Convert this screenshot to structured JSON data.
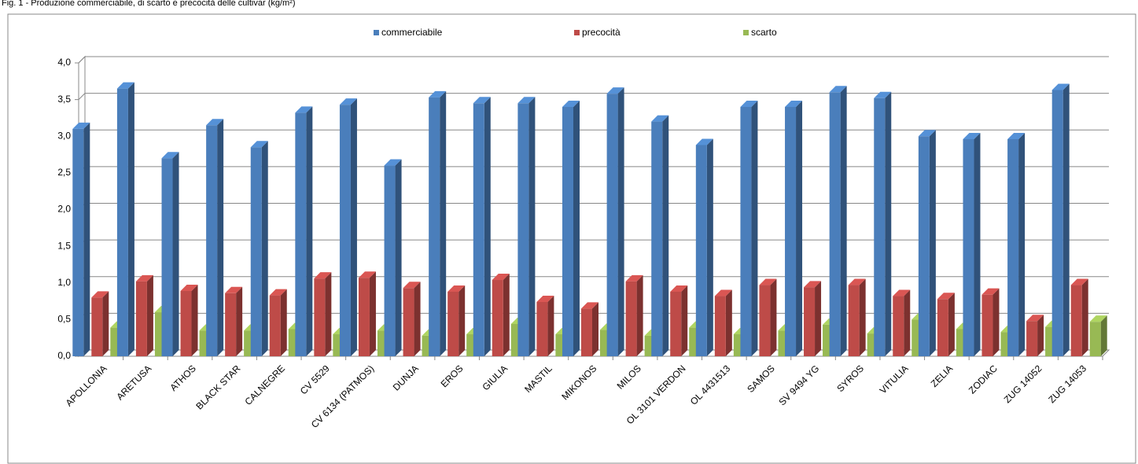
{
  "chart_data": {
    "type": "bar3d",
    "title": "Fig. 1 - Produzione commerciabile, di scarto e precocità delle cultivar (kg/m²)",
    "categories": [
      "APOLLONIA",
      "ARETUSA",
      "ATHOS",
      "BLACK STAR",
      "CALNEGRE",
      "CV 5529",
      "CV 6134 (PATMOS)",
      "DUNJA",
      "EROS",
      "GIULIA",
      "MASTIL",
      "MIKONOS",
      "MILOS",
      "OL 3101 VERDON",
      "OL 4431513",
      "SAMOS",
      "SV 9494 YG",
      "SYROS",
      "VITULIA",
      "ZELIA",
      "ZODIAC",
      "ZUG 14052",
      "ZUG 14053"
    ],
    "series": [
      {
        "name": "commerciabile",
        "color": "#4a7ebb",
        "values": [
          3.1,
          3.65,
          2.7,
          3.15,
          2.85,
          3.32,
          3.43,
          2.6,
          3.53,
          3.45,
          3.45,
          3.4,
          3.58,
          3.2,
          2.88,
          3.4,
          3.4,
          3.6,
          3.52,
          3.0,
          2.96,
          2.96,
          3.63
        ]
      },
      {
        "name": "precocità",
        "color": "#be4b48",
        "values": [
          0.8,
          1.02,
          0.89,
          0.86,
          0.83,
          1.06,
          1.07,
          0.93,
          0.88,
          1.04,
          0.74,
          0.65,
          1.02,
          0.88,
          0.82,
          0.97,
          0.94,
          0.97,
          0.82,
          0.78,
          0.84,
          0.48,
          0.97
        ]
      },
      {
        "name": "scarto",
        "color": "#98b954",
        "values": [
          0.39,
          0.6,
          0.35,
          0.35,
          0.37,
          0.3,
          0.35,
          0.28,
          0.3,
          0.44,
          0.3,
          0.36,
          0.28,
          0.39,
          0.3,
          0.35,
          0.43,
          0.31,
          0.5,
          0.37,
          0.33,
          0.4,
          0.47
        ]
      }
    ],
    "ylim": [
      0,
      4
    ],
    "yticks": [
      {
        "value": 0,
        "label": "0,0"
      },
      {
        "value": 0.5,
        "label": "0,5"
      },
      {
        "value": 1,
        "label": "1,0"
      },
      {
        "value": 1.5,
        "label": "1,5"
      },
      {
        "value": 2,
        "label": "2,0"
      },
      {
        "value": 2.5,
        "label": "2,5"
      },
      {
        "value": 3,
        "label": "3,0"
      },
      {
        "value": 3.5,
        "label": "3,5"
      },
      {
        "value": 4,
        "label": "4,0"
      }
    ],
    "grid": true,
    "legend": "top"
  }
}
